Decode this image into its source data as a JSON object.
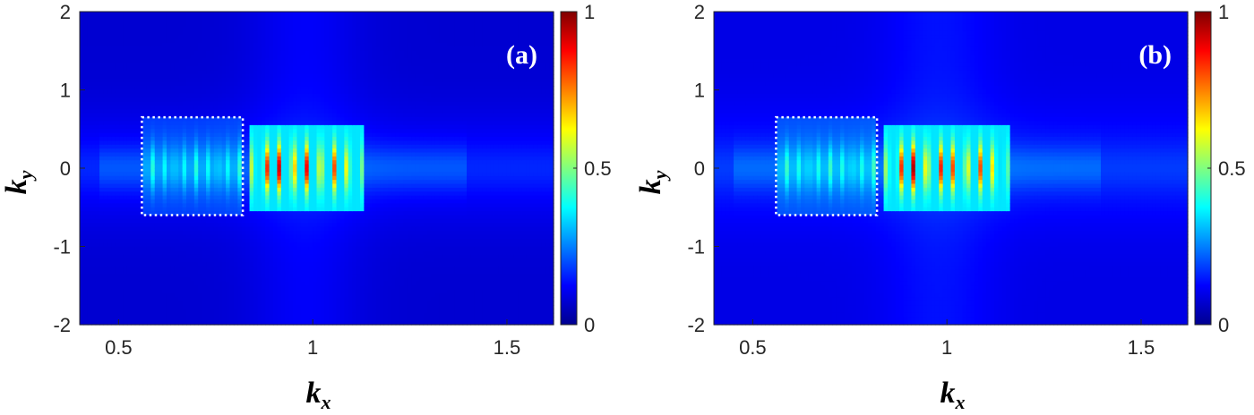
{
  "chart_data": [
    {
      "type": "heatmap",
      "panel_label": "(a)",
      "xlabel": "k",
      "xlabel_sub": "x",
      "ylabel": "k",
      "ylabel_sub": "y",
      "xlim": [
        0.4,
        1.62
      ],
      "ylim": [
        -2,
        2
      ],
      "xticks": [
        0.5,
        1,
        1.5
      ],
      "xtick_labels": [
        "0.5",
        "1",
        "1.5"
      ],
      "yticks": [
        2,
        1,
        0,
        -1,
        -2
      ],
      "ytick_labels": [
        "2",
        "1",
        "0",
        "-1",
        "-2"
      ],
      "colorbar": {
        "range": [
          0,
          1
        ],
        "ticks": [
          1,
          0.5,
          0
        ],
        "tick_labels": [
          "1",
          "0.5",
          "0"
        ],
        "colormap": "jet"
      },
      "box": {
        "x": [
          0.56,
          0.82
        ],
        "y": [
          -0.6,
          0.65
        ]
      },
      "fringe_region": {
        "x": [
          0.88,
          1.09
        ],
        "y": [
          -0.4,
          0.4
        ],
        "fringe_count": 7,
        "peak": 1.0
      },
      "background_level": 0.08
    },
    {
      "type": "heatmap",
      "panel_label": "(b)",
      "xlabel": "k",
      "xlabel_sub": "x",
      "ylabel": "k",
      "ylabel_sub": "y",
      "xlim": [
        0.4,
        1.62
      ],
      "ylim": [
        -2,
        2
      ],
      "xticks": [
        0.5,
        1,
        1.5
      ],
      "xtick_labels": [
        "0.5",
        "1",
        "1.5"
      ],
      "yticks": [
        2,
        1,
        0,
        -1,
        -2
      ],
      "ytick_labels": [
        "2",
        "1",
        "0",
        "-1",
        "-2"
      ],
      "colorbar": {
        "range": [
          0,
          1
        ],
        "ticks": [
          1,
          0.5,
          0
        ],
        "tick_labels": [
          "1",
          "0.5",
          "0"
        ],
        "colormap": "jet"
      },
      "box": {
        "x": [
          0.56,
          0.82
        ],
        "y": [
          -0.6,
          0.65
        ]
      },
      "fringe_region": {
        "x": [
          0.88,
          1.12
        ],
        "y": [
          -0.4,
          0.4
        ],
        "fringe_count": 8,
        "peak": 1.0
      },
      "background_level": 0.1
    }
  ]
}
